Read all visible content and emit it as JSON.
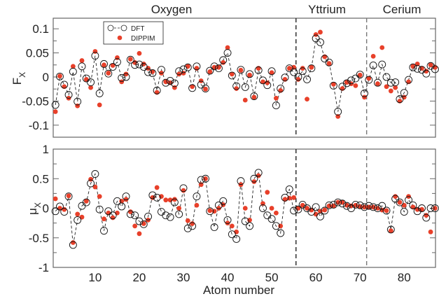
{
  "chart_data": [
    {
      "type": "scatter",
      "panel": "top",
      "ylabel": "F",
      "ylabel_sub": "X",
      "xlabel": "",
      "xlim": [
        0.5,
        87.1
      ],
      "ylim": [
        -0.125,
        0.122
      ],
      "yticks": [
        0.1,
        0.05,
        0,
        -0.05,
        -0.1
      ],
      "ytick_labels": [
        "0.1",
        "0.05",
        "0",
        "-0.05",
        "-0.1"
      ],
      "legend": {
        "placement": "top-left",
        "entries": [
          "DFT",
          "DIPPIM"
        ]
      },
      "series": [
        {
          "name": "DFT",
          "style": "open-circle-dashed",
          "x": [
            1,
            2,
            3,
            4,
            5,
            6,
            7,
            8,
            9,
            10,
            11,
            12,
            13,
            14,
            15,
            16,
            17,
            18,
            19,
            20,
            21,
            22,
            23,
            24,
            25,
            26,
            27,
            28,
            29,
            30,
            31,
            32,
            33,
            34,
            35,
            36,
            37,
            38,
            39,
            40,
            41,
            42,
            43,
            44,
            45,
            46,
            47,
            48,
            49,
            50,
            51,
            52,
            53,
            54,
            55,
            56,
            57,
            58,
            59,
            60,
            61,
            62,
            63,
            64,
            65,
            66,
            67,
            68,
            69,
            70,
            71,
            72,
            73,
            74,
            75,
            76,
            77,
            78,
            79,
            80,
            81,
            82,
            83,
            84,
            85,
            86,
            87
          ],
          "values": [
            -0.058,
            0.001,
            -0.016,
            -0.037,
            0.011,
            -0.051,
            0.022,
            -0.003,
            -0.011,
            0.044,
            -0.034,
            0.027,
            0.007,
            0.021,
            0.031,
            -0.002,
            0.0,
            0.036,
            0.025,
            0.026,
            0.021,
            0.01,
            0.008,
            -0.028,
            0.015,
            -0.012,
            -0.008,
            -0.013,
            0.012,
            0.016,
            0.02,
            -0.023,
            0.022,
            -0.016,
            -0.024,
            0.013,
            0.022,
            0.018,
            0.035,
            0.05,
            0.003,
            -0.019,
            0.015,
            -0.021,
            0.006,
            -0.04,
            0.014,
            -0.007,
            -0.017,
            0.012,
            -0.059,
            -0.024,
            -0.001,
            0.018,
            0.01,
            0.0,
            0.012,
            -0.005,
            0.018,
            0.08,
            0.072,
            0.038,
            0.03,
            -0.018,
            -0.072,
            -0.02,
            -0.013,
            -0.007,
            -0.003,
            0.005,
            -0.034,
            -0.006,
            0.024,
            -0.012,
            0.026,
            0.0,
            -0.012,
            -0.011,
            -0.046,
            -0.033,
            -0.006,
            0.02,
            0.017,
            0.015,
            0.007,
            0.023,
            0.016
          ]
        },
        {
          "name": "DIPPIM",
          "style": "filled-dot",
          "color": "#e8402a",
          "x": [
            1,
            2,
            3,
            4,
            5,
            6,
            7,
            8,
            9,
            10,
            11,
            12,
            13,
            14,
            15,
            16,
            17,
            18,
            19,
            20,
            21,
            22,
            23,
            24,
            25,
            26,
            27,
            28,
            29,
            30,
            31,
            32,
            33,
            34,
            35,
            36,
            37,
            38,
            39,
            40,
            41,
            42,
            43,
            44,
            45,
            46,
            47,
            48,
            49,
            50,
            51,
            52,
            53,
            54,
            55,
            56,
            57,
            58,
            59,
            60,
            61,
            62,
            63,
            64,
            65,
            66,
            67,
            68,
            69,
            70,
            71,
            72,
            73,
            74,
            75,
            76,
            77,
            78,
            79,
            80,
            81,
            82,
            83,
            84,
            85,
            86,
            87
          ],
          "values": [
            -0.072,
            0.002,
            -0.02,
            -0.044,
            0.022,
            -0.06,
            0.034,
            -0.005,
            -0.022,
            0.053,
            -0.058,
            0.025,
            0.008,
            0.024,
            0.04,
            -0.01,
            0.006,
            0.037,
            0.03,
            0.049,
            0.027,
            0.018,
            0.011,
            -0.032,
            0.008,
            -0.01,
            -0.012,
            -0.022,
            0.006,
            0.008,
            0.022,
            -0.02,
            0.018,
            -0.008,
            -0.025,
            0.011,
            0.02,
            0.02,
            0.03,
            0.061,
            0.006,
            -0.024,
            0.014,
            -0.048,
            0.004,
            -0.042,
            0.018,
            -0.01,
            -0.012,
            0.009,
            -0.044,
            -0.028,
            -0.005,
            0.018,
            0.02,
            -0.005,
            0.018,
            -0.046,
            0.02,
            0.088,
            0.093,
            0.042,
            0.028,
            -0.015,
            -0.082,
            -0.024,
            -0.011,
            -0.014,
            -0.018,
            0.004,
            -0.042,
            -0.003,
            0.043,
            -0.014,
            0.061,
            -0.02,
            -0.029,
            -0.022,
            -0.05,
            -0.042,
            -0.01,
            0.022,
            0.027,
            0.018,
            0.012,
            0.025,
            0.02
          ]
        }
      ]
    },
    {
      "type": "scatter",
      "panel": "bottom",
      "ylabel": "μ",
      "ylabel_sub": "X",
      "xlabel": "Atom number",
      "xlim": [
        0.5,
        87.1
      ],
      "ylim": [
        -1,
        1
      ],
      "yticks": [
        1,
        0.5,
        0,
        -0.5,
        -1
      ],
      "ytick_labels": [
        "1",
        "0.5",
        "0",
        "-0.5",
        "-1"
      ],
      "xticks": [
        10,
        20,
        30,
        40,
        50,
        60,
        70,
        80
      ],
      "xtick_labels": [
        "10",
        "20",
        "30",
        "40",
        "50",
        "60",
        "70",
        "80"
      ],
      "series": [
        {
          "name": "DFT",
          "style": "open-circle-dashed",
          "x": [
            1,
            2,
            3,
            4,
            5,
            6,
            7,
            8,
            9,
            10,
            11,
            12,
            13,
            14,
            15,
            16,
            17,
            18,
            19,
            20,
            21,
            22,
            23,
            24,
            25,
            26,
            27,
            28,
            29,
            30,
            31,
            32,
            33,
            34,
            35,
            36,
            37,
            38,
            39,
            40,
            41,
            42,
            43,
            44,
            45,
            46,
            47,
            48,
            49,
            50,
            51,
            52,
            53,
            54,
            55,
            56,
            57,
            58,
            59,
            60,
            61,
            62,
            63,
            64,
            65,
            66,
            67,
            68,
            69,
            70,
            71,
            72,
            73,
            74,
            75,
            76,
            77,
            78,
            79,
            80,
            81,
            82,
            83,
            84,
            85,
            86,
            87
          ],
          "values": [
            -0.05,
            0.03,
            -0.06,
            0.2,
            -0.62,
            -0.2,
            0.04,
            0.1,
            0.42,
            0.58,
            -0.02,
            -0.38,
            -0.05,
            -0.12,
            0.12,
            0.03,
            0.2,
            -0.1,
            -0.12,
            -0.22,
            -0.27,
            -0.14,
            0.22,
            0.18,
            -0.06,
            -0.12,
            -0.15,
            0.1,
            -0.1,
            0.34,
            -0.34,
            -0.3,
            0.2,
            0.48,
            0.5,
            -0.05,
            -0.32,
            0.05,
            0.12,
            -0.2,
            -0.44,
            -0.52,
            0.46,
            -0.22,
            -0.3,
            0.5,
            0.6,
            0.0,
            -0.12,
            -0.18,
            -0.3,
            -0.42,
            0.18,
            0.32,
            -0.04,
            -0.02,
            0.06,
            0.0,
            -0.06,
            0.02,
            -0.14,
            -0.04,
            0.05,
            0.06,
            0.1,
            0.08,
            0.04,
            0.0,
            0.06,
            0.05,
            0.02,
            0.04,
            0.02,
            0.0,
            0.04,
            -0.04,
            -0.36,
            0.16,
            0.1,
            -0.06,
            0.14,
            0.05,
            -0.05,
            0.0,
            -0.16,
            0.0,
            0.0
          ]
        },
        {
          "name": "DIPPIM",
          "style": "filled-dot",
          "color": "#e8402a",
          "x": [
            1,
            2,
            3,
            4,
            5,
            6,
            7,
            8,
            9,
            10,
            11,
            12,
            13,
            14,
            15,
            16,
            17,
            18,
            19,
            20,
            21,
            22,
            23,
            24,
            25,
            26,
            27,
            28,
            29,
            30,
            31,
            32,
            33,
            34,
            35,
            36,
            37,
            38,
            39,
            40,
            41,
            42,
            43,
            44,
            45,
            46,
            47,
            48,
            49,
            50,
            51,
            52,
            53,
            54,
            55,
            56,
            57,
            58,
            59,
            60,
            61,
            62,
            63,
            64,
            65,
            66,
            67,
            68,
            69,
            70,
            71,
            72,
            73,
            74,
            75,
            76,
            77,
            78,
            79,
            80,
            81,
            82,
            83,
            84,
            85,
            86,
            87
          ],
          "values": [
            0.16,
            0.0,
            -0.02,
            0.21,
            -0.58,
            -0.1,
            -0.15,
            0.12,
            0.49,
            0.36,
            0.2,
            -0.18,
            -0.08,
            -0.16,
            -0.08,
            0.12,
            0.15,
            -0.06,
            -0.3,
            -0.43,
            -0.26,
            -0.2,
            0.18,
            0.35,
            0.2,
            0.14,
            0.14,
            0.15,
            0.0,
            0.3,
            -0.21,
            -0.26,
            0.05,
            0.4,
            0.5,
            -0.04,
            -0.05,
            0.0,
            0.06,
            -0.25,
            -0.3,
            -0.4,
            0.4,
            0.0,
            -0.2,
            0.45,
            0.55,
            0.08,
            0.27,
            0.0,
            -0.08,
            -0.3,
            0.15,
            0.17,
            0.18,
            0.0,
            0.05,
            0.0,
            -0.03,
            -0.1,
            -0.05,
            -0.03,
            0.04,
            0.04,
            0.1,
            0.1,
            0.05,
            0.04,
            0.05,
            0.03,
            0.02,
            0.02,
            0.02,
            0.0,
            -0.03,
            -0.04,
            -0.38,
            0.2,
            0.1,
            0.05,
            0.2,
            0.02,
            -0.02,
            -0.02,
            -0.12,
            -0.4,
            0.0
          ]
        }
      ]
    }
  ],
  "region_labels": [
    "Oxygen",
    "Yttrium",
    "Cerium"
  ],
  "region_boundaries": [
    55.5,
    71.5
  ],
  "colors": {
    "dippim": "#e8402a",
    "dft": "#111111",
    "axis": "#666666"
  }
}
